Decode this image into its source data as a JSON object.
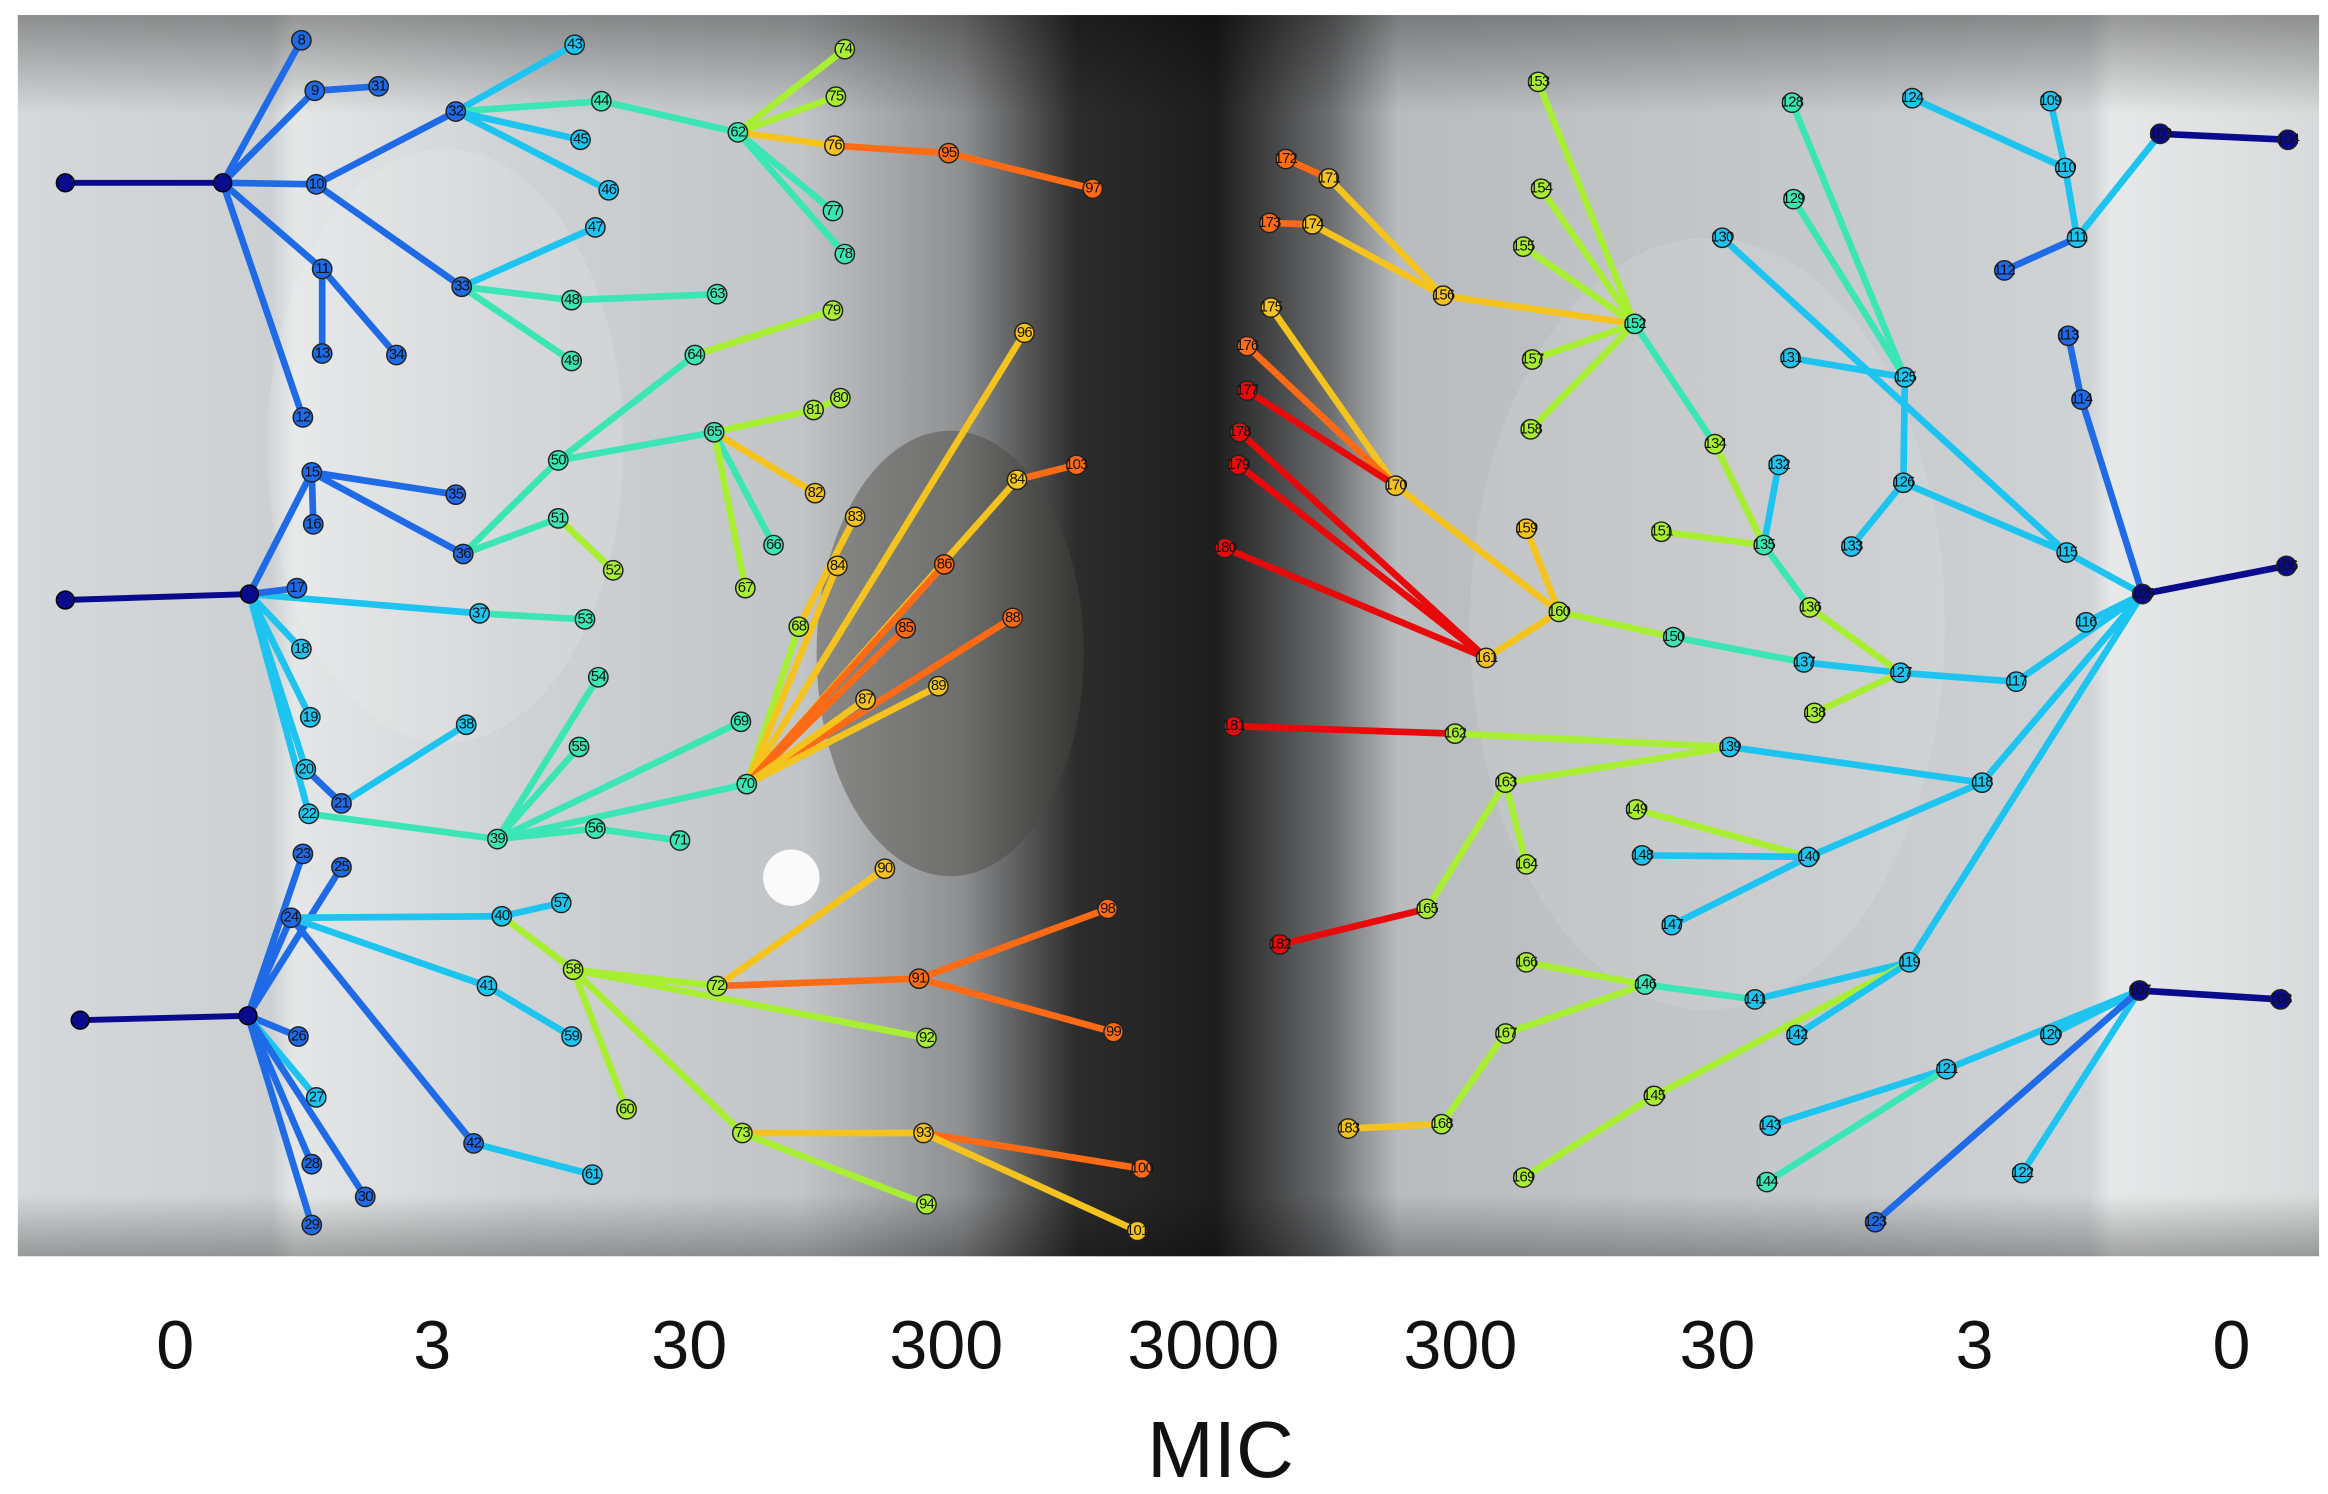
{
  "axis": {
    "tick_labels": [
      "0",
      "3",
      "30",
      "300",
      "3000",
      "300",
      "30",
      "3",
      "0"
    ],
    "title": "MIC"
  },
  "nodes": [
    {
      "label": "8"
    },
    {
      "label": "9"
    },
    {
      "label": "31"
    },
    {
      "label": "10"
    },
    {
      "label": "11"
    },
    {
      "label": "13"
    },
    {
      "label": "34"
    },
    {
      "label": "12"
    },
    {
      "label": "32"
    },
    {
      "label": "43"
    },
    {
      "label": "44"
    },
    {
      "label": "45"
    },
    {
      "label": "46"
    },
    {
      "label": "33"
    },
    {
      "label": "47"
    },
    {
      "label": "48"
    },
    {
      "label": "49"
    },
    {
      "label": "63"
    },
    {
      "label": "62"
    },
    {
      "label": "74"
    },
    {
      "label": "75"
    },
    {
      "label": "76"
    },
    {
      "label": "95"
    },
    {
      "label": "97"
    },
    {
      "label": "77"
    },
    {
      "label": "78"
    },
    {
      "label": "15"
    },
    {
      "label": "35"
    },
    {
      "label": "16"
    },
    {
      "label": "36"
    },
    {
      "label": "50"
    },
    {
      "label": "64"
    },
    {
      "label": "79"
    },
    {
      "label": "65"
    },
    {
      "label": "81"
    },
    {
      "label": "80"
    },
    {
      "label": "82"
    },
    {
      "label": "66"
    },
    {
      "label": "67"
    },
    {
      "label": "51"
    },
    {
      "label": "52"
    },
    {
      "label": "37"
    },
    {
      "label": "53"
    },
    {
      "label": "17"
    },
    {
      "label": "18"
    },
    {
      "label": "19"
    },
    {
      "label": "20"
    },
    {
      "label": "21"
    },
    {
      "label": "38"
    },
    {
      "label": "22"
    },
    {
      "label": "39"
    },
    {
      "label": "54"
    },
    {
      "label": "55"
    },
    {
      "label": "69"
    },
    {
      "label": "56"
    },
    {
      "label": "71"
    },
    {
      "label": "70"
    },
    {
      "label": "68"
    },
    {
      "label": "83"
    },
    {
      "label": "84"
    },
    {
      "label": "96"
    },
    {
      "label": "84"
    },
    {
      "label": "103"
    },
    {
      "label": "86"
    },
    {
      "label": "85"
    },
    {
      "label": "88"
    },
    {
      "label": "87"
    },
    {
      "label": "89"
    },
    {
      "label": "23"
    },
    {
      "label": "25"
    },
    {
      "label": "24"
    },
    {
      "label": "40"
    },
    {
      "label": "57"
    },
    {
      "label": "58"
    },
    {
      "label": "41"
    },
    {
      "label": "59"
    },
    {
      "label": "72"
    },
    {
      "label": "90"
    },
    {
      "label": "91"
    },
    {
      "label": "98"
    },
    {
      "label": "99"
    },
    {
      "label": "26"
    },
    {
      "label": "27"
    },
    {
      "label": "92"
    },
    {
      "label": "60"
    },
    {
      "label": "42"
    },
    {
      "label": "61"
    },
    {
      "label": "73"
    },
    {
      "label": "93"
    },
    {
      "label": "100"
    },
    {
      "label": "94"
    },
    {
      "label": "101"
    },
    {
      "label": "28"
    },
    {
      "label": "29"
    },
    {
      "label": "30"
    },
    {
      "label": "156"
    },
    {
      "label": "171"
    },
    {
      "label": "172"
    },
    {
      "label": "174"
    },
    {
      "label": "173"
    },
    {
      "label": "170"
    },
    {
      "label": "175"
    },
    {
      "label": "176"
    },
    {
      "label": "177"
    },
    {
      "label": "152"
    },
    {
      "label": "178"
    },
    {
      "label": "179"
    },
    {
      "label": "161"
    },
    {
      "label": "160"
    },
    {
      "label": "180"
    },
    {
      "label": "150"
    },
    {
      "label": "137"
    },
    {
      "label": "127"
    },
    {
      "label": "117"
    },
    {
      "label": "105"
    },
    {
      "label": "106"
    },
    {
      "label": "159"
    },
    {
      "label": "153"
    },
    {
      "label": "154"
    },
    {
      "label": "155"
    },
    {
      "label": "157"
    },
    {
      "label": "158"
    },
    {
      "label": "134"
    },
    {
      "label": "135"
    },
    {
      "label": "136"
    },
    {
      "label": "151"
    },
    {
      "label": "132"
    },
    {
      "label": "138"
    },
    {
      "label": "116"
    },
    {
      "label": "115"
    },
    {
      "label": "126"
    },
    {
      "label": "125"
    },
    {
      "label": "133"
    },
    {
      "label": "128"
    },
    {
      "label": "129"
    },
    {
      "label": "130"
    },
    {
      "label": "131"
    },
    {
      "label": "113"
    },
    {
      "label": "114"
    },
    {
      "label": "111"
    },
    {
      "label": "110"
    },
    {
      "label": "104"
    },
    {
      "label": "103"
    },
    {
      "label": "124"
    },
    {
      "label": "109"
    },
    {
      "label": "112"
    },
    {
      "label": "118"
    },
    {
      "label": "139"
    },
    {
      "label": "162"
    },
    {
      "label": "181"
    },
    {
      "label": "163"
    },
    {
      "label": "165"
    },
    {
      "label": "182"
    },
    {
      "label": "119"
    },
    {
      "label": "140"
    },
    {
      "label": "149"
    },
    {
      "label": "148"
    },
    {
      "label": "147"
    },
    {
      "label": "141"
    },
    {
      "label": "146"
    },
    {
      "label": "166"
    },
    {
      "label": "167"
    },
    {
      "label": "168"
    },
    {
      "label": "183"
    },
    {
      "label": "145"
    },
    {
      "label": "169"
    },
    {
      "label": "142"
    },
    {
      "label": "107"
    },
    {
      "label": "108"
    },
    {
      "label": "120"
    },
    {
      "label": "121"
    },
    {
      "label": "143"
    },
    {
      "label": "144"
    },
    {
      "label": "122"
    },
    {
      "label": "123"
    },
    {
      "label": "164"
    }
  ]
}
